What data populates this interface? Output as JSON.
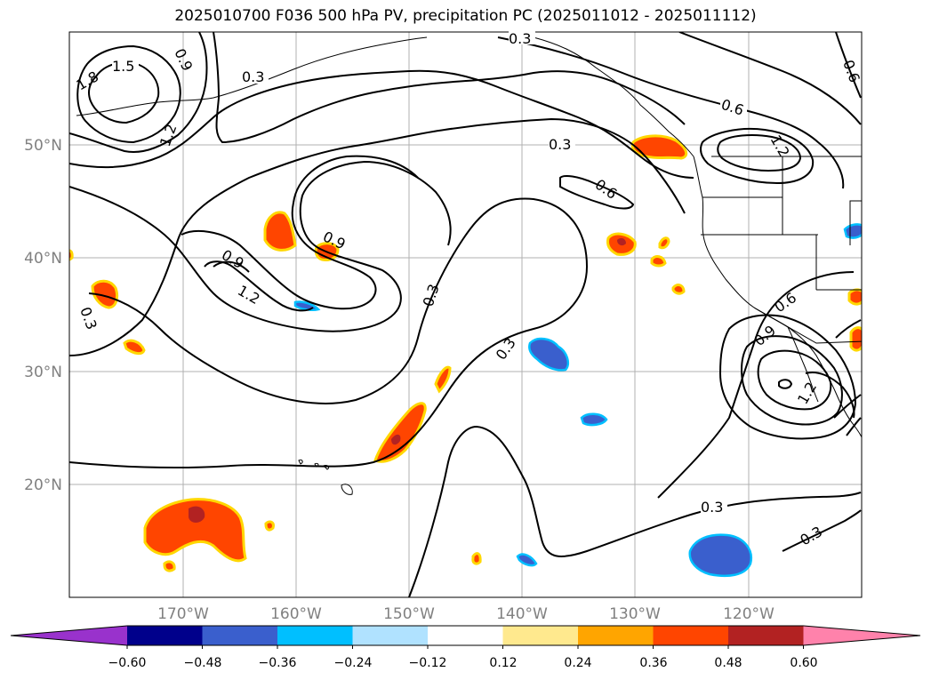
{
  "title": "2025010700 F036 500 hPa PV, precipitation PC (2025011012 - 2025011112)",
  "lat_labels": [
    "50°N",
    "40°N",
    "30°N",
    "20°N"
  ],
  "lon_labels": [
    "170°W",
    "160°W",
    "150°W",
    "140°W",
    "130°W",
    "120°W"
  ],
  "contour_labels": [
    "0.3",
    "0.6",
    "0.9",
    "1.2",
    "1.5",
    "1.8"
  ],
  "colorbar": {
    "colors": [
      "#9932cc",
      "#00008b",
      "#3a5fcd",
      "#00bfff",
      "#b0e2ff",
      "#ffffff",
      "#ffe98e",
      "#ffa500",
      "#ff4500",
      "#b22222",
      "#ff82ab"
    ],
    "tick_labels": [
      "−0.60",
      "−0.48",
      "−0.36",
      "−0.24",
      "−0.12",
      "0.12",
      "0.24",
      "0.36",
      "0.48",
      "0.60"
    ]
  }
}
